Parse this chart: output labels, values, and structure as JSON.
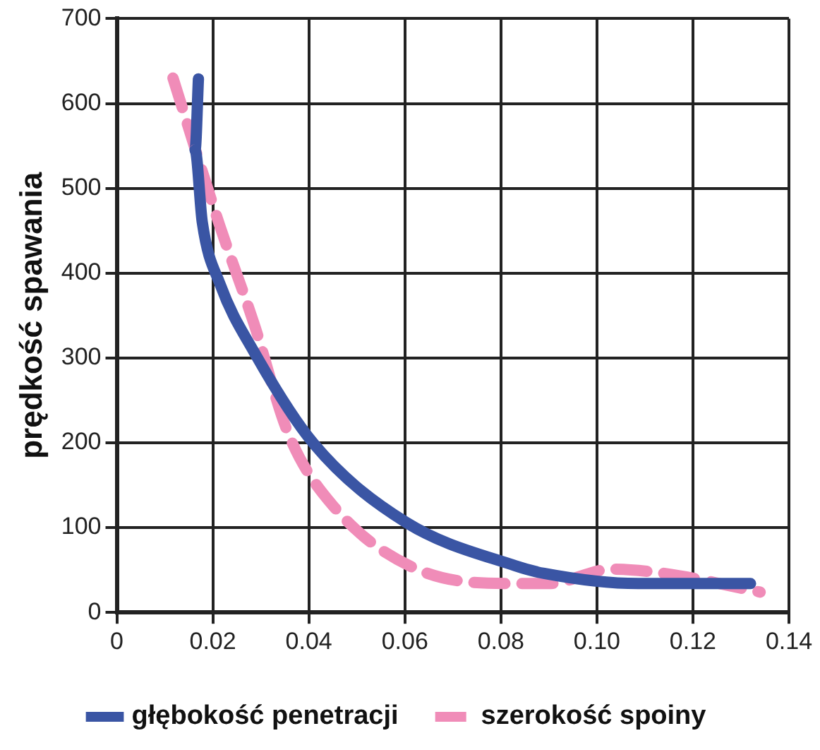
{
  "chart_data": {
    "type": "line",
    "ylabel": "prędkość spawania",
    "xlim": [
      0,
      0.14
    ],
    "xticks": [
      0,
      0.02,
      0.04,
      0.06,
      {
        "value": 0.1,
        "label": "0.10"
      },
      0.08,
      0.12,
      0.14
    ],
    "ylim": [
      0,
      700
    ],
    "yticks": [
      0,
      100,
      200,
      300,
      400,
      500,
      600,
      700
    ],
    "grid": true,
    "legend": "bottom",
    "marker": "none",
    "series": [
      {
        "name": "głębokość penetracji",
        "color": "#3a55a4",
        "line_style": "solid",
        "x": [
          0.017,
          0.0163,
          0.0178,
          0.0215,
          0.0286,
          0.041,
          0.0603,
          0.083,
          0.089,
          0.1086,
          0.132
        ],
        "values": [
          629,
          545,
          460,
          387,
          307,
          199,
          106,
          55,
          46,
          34,
          34
        ]
      },
      {
        "name": "szerokość spoiny",
        "color": "#f08cb8",
        "line_style": "dashed",
        "x": [
          0.0117,
          0.0215,
          0.0286,
          0.0357,
          0.045,
          0.0625,
          0.083,
          0.09,
          0.103,
          0.114,
          0.134
        ],
        "values": [
          630,
          455,
          340,
          211,
          126,
          51,
          34,
          34,
          51,
          46,
          24
        ]
      }
    ]
  }
}
